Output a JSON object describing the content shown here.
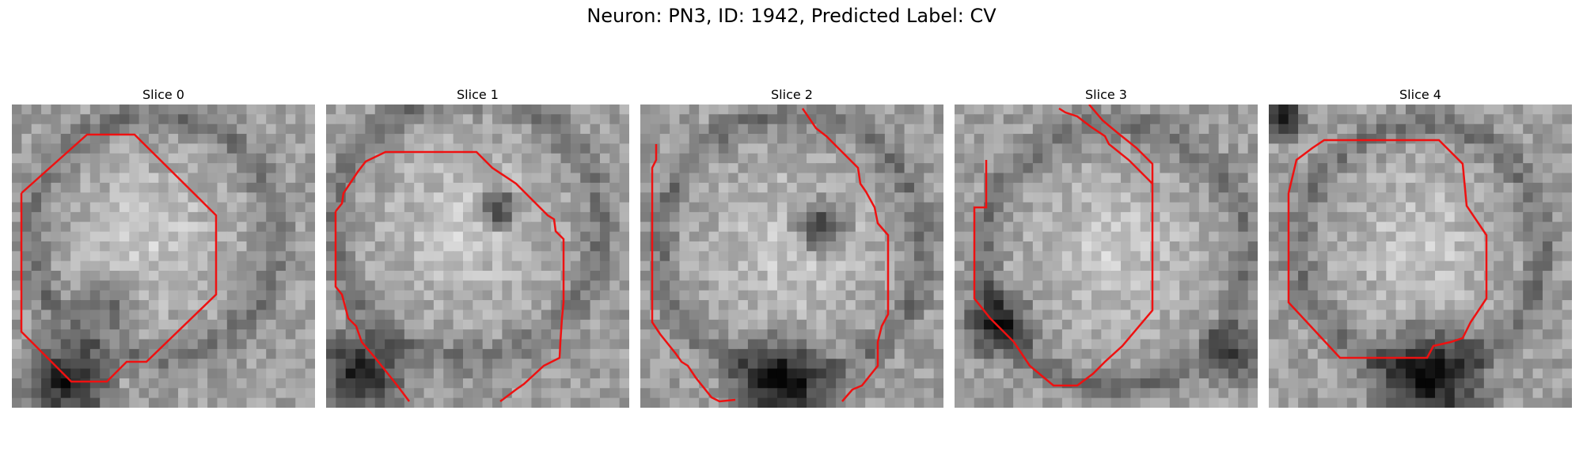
{
  "figure": {
    "title": "Neuron: PN3, ID: 1942, Predicted Label: CV"
  },
  "panels": [
    {
      "title": "Slice 0",
      "shading": "bright center, dark band lower-left"
    },
    {
      "title": "Slice 1",
      "shading": "bright center with dark blob, dark lower-left"
    },
    {
      "title": "Slice 2",
      "shading": "bright, dark blob center, dark band bottom"
    },
    {
      "title": "Slice 3",
      "shading": "bright disc, dark ring edges"
    },
    {
      "title": "Slice 4",
      "shading": "bright center, dark ring bottom"
    }
  ],
  "colors": {
    "contour": "#ee1111",
    "background": "#ffffff"
  }
}
